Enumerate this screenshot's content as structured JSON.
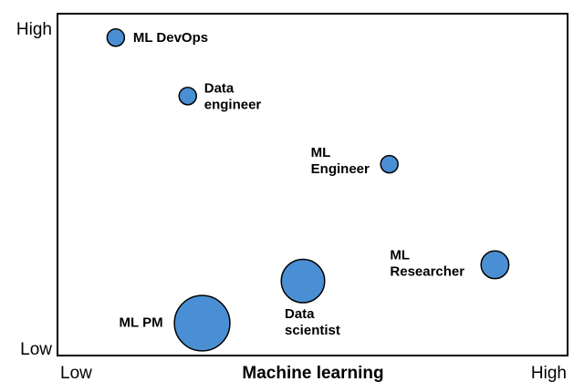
{
  "chart_data": {
    "type": "scatter",
    "title": "",
    "xlabel": "Machine learning",
    "ylabel": "",
    "xlim": [
      0,
      10
    ],
    "ylim": [
      0,
      10
    ],
    "x_tick_labels": {
      "low": "Low",
      "high": "High"
    },
    "y_tick_labels": {
      "low": "Low",
      "high": "High"
    },
    "grid": false,
    "legend": "none",
    "bubble_color": "#4A8FD3",
    "points": [
      {
        "label_lines": [
          "ML DevOps"
        ],
        "x": 1.1,
        "y": 9.6,
        "size": 1
      },
      {
        "label_lines": [
          "Data",
          "engineer"
        ],
        "x": 2.6,
        "y": 7.8,
        "size": 1
      },
      {
        "label_lines": [
          "ML",
          "Engineer"
        ],
        "x": 6.8,
        "y": 5.7,
        "size": 1
      },
      {
        "label_lines": [
          "ML",
          "Researcher"
        ],
        "x": 9.0,
        "y": 2.6,
        "size": 1.6
      },
      {
        "label_lines": [
          "Data",
          "scientist"
        ],
        "x": 5.0,
        "y": 2.1,
        "size": 2.5
      },
      {
        "label_lines": [
          "ML PM"
        ],
        "x": 2.9,
        "y": 0.8,
        "size": 3.2
      }
    ]
  }
}
